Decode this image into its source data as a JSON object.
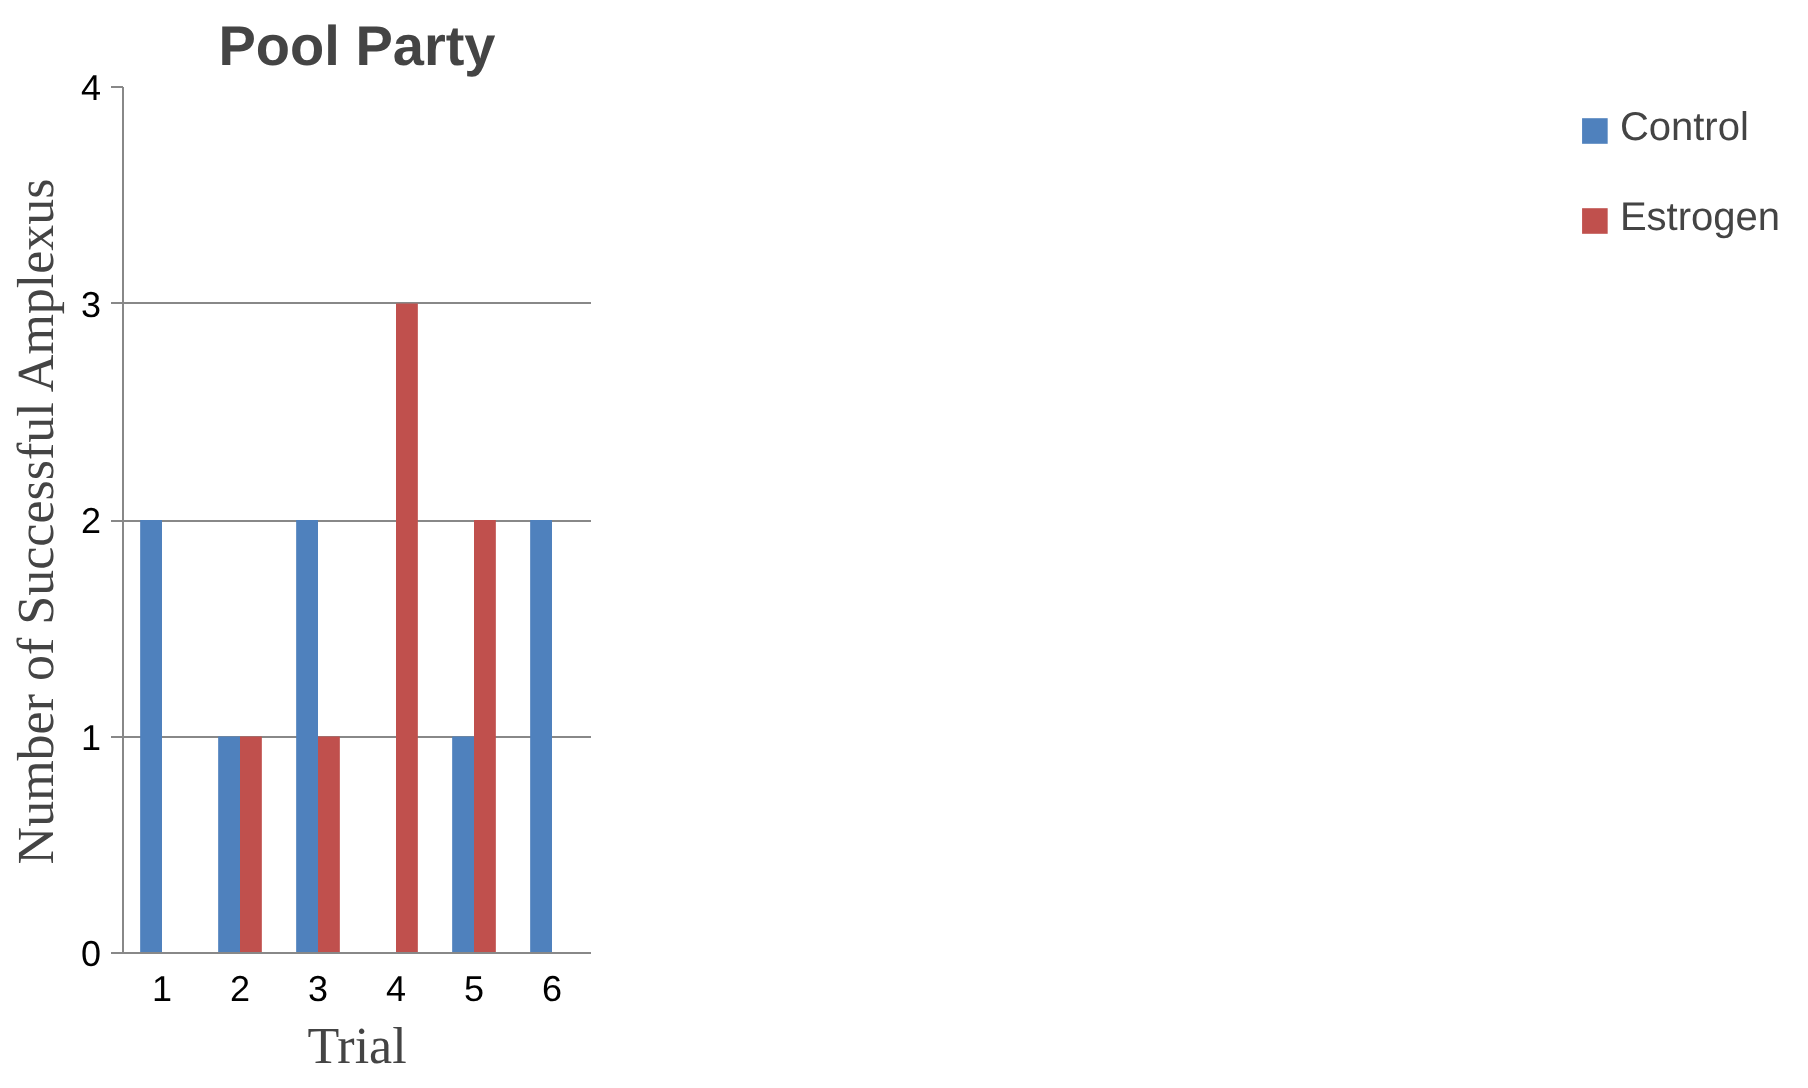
{
  "chart_data": {
    "type": "bar",
    "title": "Pool Party",
    "xlabel": "Trial",
    "ylabel": "Number of Successful Amplexus",
    "categories": [
      "1",
      "2",
      "3",
      "4",
      "5",
      "6"
    ],
    "series": [
      {
        "name": "Control",
        "color": "#4f81bd",
        "values": [
          2,
          1,
          2,
          0,
          1,
          2
        ]
      },
      {
        "name": "Estrogen",
        "color": "#c0504d",
        "values": [
          0,
          1,
          1,
          3,
          2,
          0
        ]
      }
    ],
    "ylim": [
      0,
      4
    ],
    "yticks": [
      0,
      1,
      2,
      3,
      4
    ],
    "grid": "y",
    "legend": "right"
  }
}
